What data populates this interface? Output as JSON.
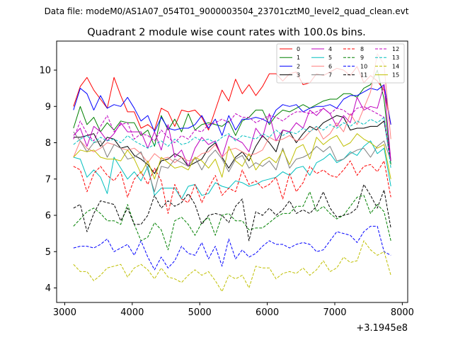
{
  "chart_data": {
    "type": "line",
    "suptitle": "Data file: modeM0/AS1A07_054T01_9000003504_23701cztM0_level2_quad_clean.evt",
    "title": "Quadrant 2 module wise count rates with 100.0s bins.",
    "xlabel": "",
    "ylabel": "",
    "x_offset_label": "+3.1945e8",
    "xlim": [
      2880,
      8080
    ],
    "ylim": [
      3.6,
      10.8
    ],
    "x_ticks": [
      3000,
      4000,
      5000,
      6000,
      7000,
      8000
    ],
    "y_ticks": [
      4,
      5,
      6,
      7,
      8,
      9,
      10
    ],
    "x_tick_labels": [
      "3000",
      "4000",
      "5000",
      "6000",
      "7000",
      "8000"
    ],
    "y_tick_labels": [
      "4",
      "5",
      "6",
      "7",
      "8",
      "9",
      "10"
    ],
    "legend_position": "top-right",
    "x": [
      3130,
      3230,
      3330,
      3430,
      3530,
      3630,
      3730,
      3830,
      3930,
      4030,
      4130,
      4230,
      4330,
      4430,
      4530,
      4630,
      4730,
      4830,
      4930,
      5030,
      5130,
      5230,
      5330,
      5430,
      5530,
      5630,
      5730,
      5830,
      5930,
      6030,
      6130,
      6230,
      6330,
      6430,
      6530,
      6630,
      6730,
      6830,
      6930,
      7030,
      7130,
      7230,
      7330,
      7430,
      7530,
      7630,
      7730,
      7830
    ],
    "series": [
      {
        "name": "0",
        "color": "#ff0000",
        "dash": false,
        "values": [
          9.0,
          9.55,
          9.8,
          9.45,
          9.2,
          8.95,
          9.8,
          9.3,
          8.85,
          8.85,
          8.4,
          8.5,
          8.35,
          8.95,
          8.85,
          8.45,
          8.9,
          8.85,
          8.9,
          8.7,
          8.35,
          8.9,
          9.45,
          9.15,
          9.75,
          9.35,
          9.6,
          9.3,
          9.55,
          9.9,
          9.9,
          9.7,
          9.9,
          9.95,
          9.6,
          9.65,
          9.9,
          9.85,
          9.95,
          10.05,
          10.0,
          9.85,
          10.1,
          9.65,
          9.85,
          9.7,
          9.45,
          8.5
        ]
      },
      {
        "name": "1",
        "color": "#008000",
        "dash": false,
        "values": [
          8.4,
          9.0,
          8.5,
          8.7,
          8.3,
          8.55,
          8.35,
          8.6,
          8.55,
          8.55,
          8.2,
          8.35,
          7.9,
          8.75,
          8.35,
          8.65,
          8.3,
          8.8,
          8.35,
          8.5,
          8.55,
          8.5,
          8.45,
          8.6,
          8.2,
          8.6,
          8.7,
          8.9,
          8.9,
          8.5,
          8.75,
          8.9,
          8.85,
          8.95,
          9.05,
          8.95,
          9.05,
          9.15,
          9.2,
          9.2,
          9.35,
          9.35,
          9.25,
          9.5,
          9.6,
          10.0,
          9.2,
          7.4
        ]
      },
      {
        "name": "2",
        "color": "#0000ff",
        "dash": false,
        "values": [
          8.9,
          9.5,
          9.35,
          8.9,
          9.3,
          8.95,
          9.05,
          9.0,
          9.25,
          8.95,
          8.6,
          8.75,
          8.3,
          8.7,
          8.4,
          8.35,
          8.4,
          8.4,
          8.5,
          8.75,
          8.4,
          8.65,
          8.2,
          8.75,
          8.35,
          8.65,
          8.65,
          8.7,
          8.65,
          8.55,
          8.9,
          9.05,
          9.0,
          9.05,
          8.85,
          8.95,
          9.0,
          9.0,
          9.05,
          8.95,
          9.2,
          9.3,
          9.3,
          9.4,
          9.5,
          9.45,
          9.6,
          8.5
        ]
      },
      {
        "name": "3",
        "color": "#000000",
        "dash": false,
        "values": [
          8.15,
          8.15,
          8.2,
          8.25,
          7.9,
          8.15,
          8.1,
          7.85,
          7.9,
          7.65,
          7.55,
          7.4,
          7.15,
          7.5,
          7.55,
          7.7,
          7.6,
          7.35,
          7.45,
          7.55,
          7.85,
          8.0,
          7.6,
          7.3,
          7.6,
          7.75,
          7.5,
          7.9,
          8.2,
          8.0,
          7.75,
          8.35,
          8.3,
          8.0,
          8.25,
          8.45,
          8.35,
          8.55,
          8.65,
          8.75,
          8.7,
          8.35,
          8.4,
          8.4,
          8.45,
          8.45,
          8.6,
          7.5
        ]
      },
      {
        "name": "4",
        "color": "#bf00bf",
        "dash": false,
        "values": [
          8.2,
          8.4,
          7.9,
          8.45,
          8.3,
          8.05,
          8.25,
          8.55,
          8.3,
          8.3,
          8.3,
          7.85,
          8.3,
          7.8,
          8.5,
          7.6,
          7.8,
          7.35,
          7.85,
          8.15,
          7.95,
          8.05,
          7.6,
          8.2,
          8.1,
          8.0,
          7.75,
          8.4,
          8.15,
          8.8,
          8.05,
          8.35,
          8.3,
          8.55,
          8.4,
          8.9,
          8.75,
          8.95,
          8.8,
          8.45,
          8.75,
          8.55,
          9.25,
          8.9,
          9.0,
          8.95,
          9.6,
          7.5
        ]
      },
      {
        "name": "5",
        "color": "#00bfbf",
        "dash": false,
        "values": [
          7.6,
          7.55,
          7.05,
          7.25,
          7.05,
          6.6,
          7.6,
          7.3,
          7.0,
          7.2,
          6.95,
          7.35,
          6.55,
          6.75,
          6.75,
          6.75,
          6.45,
          6.8,
          6.85,
          6.55,
          6.6,
          6.9,
          6.8,
          6.75,
          6.95,
          6.9,
          6.8,
          6.85,
          6.95,
          7.0,
          7.05,
          7.2,
          7.1,
          7.3,
          7.35,
          7.1,
          7.45,
          7.55,
          7.7,
          7.45,
          7.55,
          7.75,
          7.65,
          7.9,
          8.05,
          7.7,
          7.85,
          6.8
        ]
      },
      {
        "name": "6",
        "color": "#ff7f7f",
        "dash": false,
        "values": [
          7.6,
          8.05,
          7.85,
          7.75,
          7.85,
          8.0,
          7.95,
          7.85,
          7.8,
          7.85,
          7.7,
          7.45,
          7.7,
          7.55,
          7.6,
          7.45,
          7.6,
          7.5,
          7.55,
          7.7,
          7.75,
          7.95,
          7.6,
          7.8,
          7.85,
          7.75,
          7.65,
          7.7,
          7.8,
          8.15,
          8.05,
          8.1,
          8.2,
          8.05,
          8.1,
          8.3,
          8.45,
          8.1,
          8.25,
          8.55,
          8.3,
          8.8,
          8.5,
          8.95,
          9.4,
          10.45,
          10.15,
          8.1
        ]
      },
      {
        "name": "7",
        "color": "#7f7f7f",
        "dash": false,
        "values": [
          8.3,
          8.05,
          7.75,
          8.0,
          8.05,
          7.6,
          7.95,
          7.85,
          7.55,
          7.6,
          7.75,
          7.25,
          6.65,
          7.35,
          7.3,
          7.55,
          7.45,
          7.35,
          7.6,
          7.25,
          7.6,
          7.8,
          7.55,
          7.2,
          7.55,
          7.65,
          7.3,
          7.45,
          7.35,
          7.5,
          7.25,
          7.85,
          7.3,
          7.55,
          7.6,
          7.7,
          7.9,
          7.75,
          7.9,
          7.5,
          7.55,
          7.7,
          7.8,
          7.85,
          7.6,
          7.9,
          8.05,
          7.5
        ]
      },
      {
        "name": "8",
        "color": "#ff0000",
        "dash": true,
        "values": [
          7.35,
          7.25,
          6.65,
          7.15,
          7.35,
          7.1,
          6.95,
          7.2,
          6.5,
          7.0,
          7.2,
          6.85,
          7.3,
          6.95,
          6.05,
          6.85,
          6.45,
          6.35,
          6.85,
          6.35,
          6.75,
          7.1,
          6.55,
          6.75,
          6.65,
          7.25,
          6.85,
          6.95,
          6.75,
          6.85,
          7.05,
          6.45,
          7.15,
          6.65,
          6.9,
          7.35,
          7.15,
          7.25,
          7.1,
          7.05,
          7.25,
          7.5,
          7.1,
          7.35,
          7.4,
          7.2,
          7.5,
          6.5
        ]
      },
      {
        "name": "9",
        "color": "#008000",
        "dash": true,
        "values": [
          5.7,
          5.9,
          6.1,
          6.2,
          6.05,
          5.85,
          5.85,
          5.75,
          6.3,
          5.75,
          5.3,
          5.4,
          5.8,
          5.6,
          5.05,
          5.85,
          5.95,
          5.75,
          5.45,
          5.8,
          5.95,
          5.45,
          6.0,
          6.05,
          5.85,
          5.85,
          5.6,
          5.65,
          5.65,
          5.8,
          5.95,
          6.05,
          6.05,
          6.25,
          6.25,
          6.65,
          6.1,
          6.25,
          6.05,
          5.9,
          6.0,
          6.25,
          6.5,
          6.55,
          6.05,
          6.3,
          6.1,
          5.3
        ]
      },
      {
        "name": "10",
        "color": "#0000ff",
        "dash": true,
        "values": [
          5.1,
          5.15,
          5.15,
          5.1,
          5.2,
          5.35,
          5.0,
          5.1,
          5.2,
          4.9,
          5.3,
          4.85,
          4.5,
          4.85,
          4.55,
          4.75,
          5.15,
          4.95,
          4.9,
          5.25,
          4.8,
          5.15,
          4.6,
          5.35,
          4.8,
          5.05,
          4.85,
          4.95,
          5.15,
          5.3,
          5.2,
          5.2,
          5.1,
          5.2,
          5.25,
          5.2,
          5.0,
          5.05,
          5.3,
          5.55,
          5.5,
          5.45,
          5.25,
          5.55,
          5.7,
          5.7,
          5.0,
          4.9
        ]
      },
      {
        "name": "11",
        "color": "#000000",
        "dash": true,
        "values": [
          6.2,
          6.3,
          5.55,
          6.05,
          6.4,
          6.35,
          6.3,
          5.85,
          6.2,
          5.75,
          5.75,
          6.0,
          6.55,
          6.2,
          6.4,
          6.25,
          6.35,
          6.6,
          6.3,
          5.75,
          6.0,
          6.05,
          6.0,
          5.8,
          6.25,
          6.45,
          5.3,
          6.1,
          6.0,
          6.2,
          6.0,
          6.15,
          6.4,
          6.05,
          6.15,
          6.05,
          6.25,
          6.65,
          6.2,
          5.95,
          6.0,
          6.05,
          6.2,
          6.85,
          6.55,
          6.2,
          6.7,
          5.65
        ]
      },
      {
        "name": "12",
        "color": "#bf00bf",
        "dash": true,
        "values": [
          8.1,
          8.6,
          8.25,
          8.05,
          8.45,
          8.75,
          8.3,
          8.5,
          8.55,
          8.1,
          8.25,
          8.2,
          8.05,
          8.35,
          8.15,
          8.0,
          8.2,
          8.1,
          8.35,
          8.3,
          8.5,
          8.55,
          8.65,
          8.55,
          8.8,
          8.7,
          8.7,
          8.55,
          8.65,
          8.75,
          8.7,
          8.6,
          8.75,
          8.85,
          8.85,
          8.8,
          8.85,
          8.95,
          8.8,
          8.95,
          8.9,
          8.75,
          8.95,
          9.0,
          8.9,
          8.8,
          8.7,
          7.5
        ]
      },
      {
        "name": "13",
        "color": "#00bfbf",
        "dash": true,
        "values": [
          7.95,
          8.1,
          8.2,
          8.0,
          8.15,
          8.05,
          8.1,
          8.0,
          8.2,
          8.05,
          7.95,
          7.85,
          7.95,
          8.05,
          7.9,
          8.1,
          7.95,
          8.0,
          8.15,
          8.05,
          8.1,
          8.0,
          8.15,
          8.25,
          8.05,
          8.2,
          8.15,
          8.1,
          8.25,
          8.15,
          8.35,
          8.2,
          8.3,
          8.25,
          8.4,
          8.3,
          8.45,
          8.35,
          8.5,
          8.4,
          8.55,
          8.45,
          8.6,
          8.5,
          8.65,
          8.55,
          8.7,
          7.3
        ]
      },
      {
        "name": "14",
        "color": "#bfbf00",
        "dash": true,
        "values": [
          4.65,
          4.45,
          4.45,
          4.2,
          4.35,
          4.55,
          4.6,
          4.65,
          4.3,
          4.55,
          4.65,
          4.5,
          4.25,
          4.55,
          4.3,
          4.25,
          4.15,
          4.35,
          4.5,
          4.35,
          4.45,
          4.2,
          3.9,
          4.35,
          4.25,
          4.35,
          4.0,
          4.6,
          4.55,
          4.55,
          4.25,
          4.4,
          4.45,
          4.4,
          4.55,
          4.35,
          4.5,
          4.75,
          4.45,
          4.55,
          4.85,
          4.7,
          4.75,
          5.3,
          5.05,
          4.9,
          5.0,
          4.35
        ]
      },
      {
        "name": "15",
        "color": "#bfbf00",
        "dash": false,
        "values": [
          7.6,
          7.8,
          7.75,
          7.8,
          7.6,
          7.55,
          7.55,
          7.5,
          7.8,
          7.55,
          7.15,
          7.5,
          7.0,
          7.6,
          7.45,
          7.3,
          7.35,
          7.25,
          7.6,
          7.5,
          7.3,
          7.55,
          7.05,
          7.9,
          7.5,
          7.35,
          7.7,
          7.25,
          7.5,
          7.6,
          7.45,
          7.8,
          7.4,
          7.85,
          7.95,
          7.55,
          8.15,
          7.95,
          8.1,
          8.2,
          7.9,
          8.0,
          8.25,
          8.1,
          8.0,
          7.85,
          7.95,
          7.0
        ]
      }
    ]
  }
}
